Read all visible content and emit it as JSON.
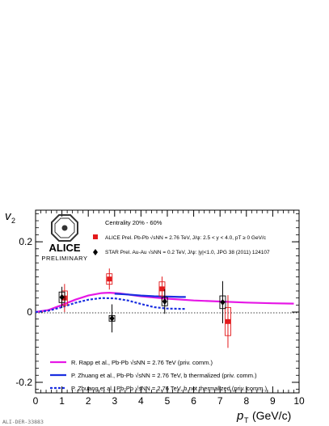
{
  "chart_data": {
    "type": "scatter",
    "xlabel": "p_T (GeV/c)",
    "ylabel": "v_2",
    "xlim": [
      0,
      10
    ],
    "ylim": [
      -0.23,
      0.29
    ],
    "xticks": [
      "0",
      "1",
      "2",
      "3",
      "4",
      "5",
      "6",
      "7",
      "8",
      "9",
      "10"
    ],
    "yticks": [
      "-0.2",
      "0",
      "0.2"
    ],
    "logo": {
      "name": "ALICE",
      "sub": "PRELIMINARY"
    },
    "centrality": "Centrality 20% - 60%",
    "footer_id": "ALI-DER-33883",
    "series": [
      {
        "name": "ALICE Prel. Pb-Pb √sNN = 2.76 TeV, J/ψ: 2.5 < y < 4.0, pT ≥ 0 GeV/c",
        "color": "#e31a1c",
        "marker": "square",
        "points": [
          {
            "x": 1.1,
            "y": 0.04,
            "err": 0.04,
            "sys": 0.02
          },
          {
            "x": 2.8,
            "y": 0.094,
            "err": 0.03,
            "sys": 0.015
          },
          {
            "x": 4.8,
            "y": 0.066,
            "err": 0.035,
            "sys": 0.02
          },
          {
            "x": 7.3,
            "y": -0.027,
            "err": 0.075,
            "sys": 0.04
          }
        ]
      },
      {
        "name": "STAR Prel. Au-Au √sNN = 0.2 TeV, J/ψ: |y|<1.0, JPG 38 (2011) 124107",
        "color": "#000000",
        "marker": "diamond",
        "points": [
          {
            "x": 1.0,
            "y": 0.042,
            "err": 0.03,
            "sys": 0.015
          },
          {
            "x": 2.9,
            "y": -0.018,
            "err": 0.04,
            "sys": 0.008
          },
          {
            "x": 4.9,
            "y": 0.03,
            "err": 0.035,
            "sys": 0.012
          },
          {
            "x": 7.1,
            "y": 0.028,
            "err": 0.06,
            "sys": 0.018
          }
        ]
      }
    ],
    "models": [
      {
        "name": "R. Rapp et al., Pb-Pb √sNN = 2.76 TeV (priv. comm.)",
        "color": "#e617e6",
        "style": "solid",
        "points": [
          [
            0,
            0
          ],
          [
            0.5,
            0.006
          ],
          [
            1,
            0.02
          ],
          [
            1.5,
            0.035
          ],
          [
            2,
            0.047
          ],
          [
            2.5,
            0.054
          ],
          [
            2.8,
            0.055
          ],
          [
            3.2,
            0.053
          ],
          [
            4,
            0.045
          ],
          [
            5,
            0.038
          ],
          [
            6,
            0.033
          ],
          [
            7,
            0.03
          ],
          [
            8,
            0.027
          ],
          [
            9,
            0.025
          ],
          [
            9.8,
            0.024
          ]
        ]
      },
      {
        "name": "P. Zhuang et al., Pb-Pb √sNN = 2.76 TeV, b thermalized (priv. comm.)",
        "color": "#1a2fe0",
        "style": "solid",
        "points": [
          [
            3,
            0.052
          ],
          [
            3.5,
            0.05
          ],
          [
            4,
            0.047
          ],
          [
            4.5,
            0.045
          ],
          [
            5,
            0.044
          ],
          [
            5.5,
            0.043
          ],
          [
            5.7,
            0.043
          ]
        ]
      },
      {
        "name": "P. Zhuang et al., Pb-Pb √sNN = 2.76 TeV, b not thermalized (priv. comm.)",
        "color": "#1a2fe0",
        "style": "dashed",
        "points": [
          [
            0,
            0
          ],
          [
            0.5,
            0.004
          ],
          [
            1,
            0.014
          ],
          [
            1.5,
            0.026
          ],
          [
            2,
            0.035
          ],
          [
            2.5,
            0.04
          ],
          [
            3,
            0.039
          ],
          [
            3.5,
            0.033
          ],
          [
            4,
            0.023
          ],
          [
            4.5,
            0.014
          ],
          [
            5,
            0.01
          ],
          [
            5.5,
            0.009
          ],
          [
            5.7,
            0.009
          ]
        ]
      }
    ]
  }
}
